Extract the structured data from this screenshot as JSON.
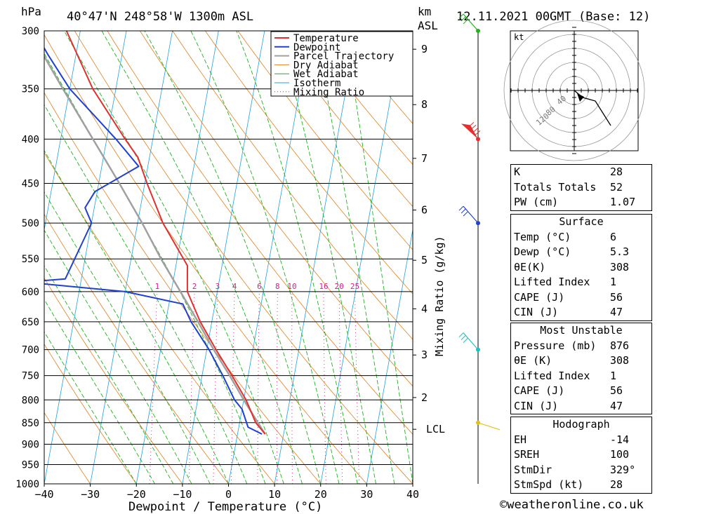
{
  "header": {
    "location": "40°47'N 248°58'W 1300m ASL",
    "datetime": "12.11.2021 00GMT (Base: 12)",
    "hpa_label": "hPa",
    "km_label": "km",
    "asl_label": "ASL"
  },
  "chart_data": {
    "type": "skew-t",
    "xlabel": "Dewpoint / Temperature (°C)",
    "ylabel_right": "Mixing Ratio (g/kg)",
    "x_ticks": [
      -40,
      -30,
      -20,
      -10,
      0,
      10,
      20,
      30,
      40
    ],
    "p_ticks": [
      300,
      350,
      400,
      450,
      500,
      550,
      600,
      650,
      700,
      750,
      800,
      850,
      900,
      950,
      1000
    ],
    "km_ticks": [
      {
        "km": 1,
        "label": "LCL",
        "p": 865
      },
      {
        "km": 2,
        "label": "2",
        "p": 795
      },
      {
        "km": 3,
        "label": "3",
        "p": 710
      },
      {
        "km": 4,
        "label": "4",
        "p": 628
      },
      {
        "km": 5,
        "label": "5",
        "p": 552
      },
      {
        "km": 6,
        "label": "6",
        "p": 483
      },
      {
        "km": 7,
        "label": "7",
        "p": 421
      },
      {
        "km": 8,
        "label": "8",
        "p": 365
      },
      {
        "km": 9,
        "label": "9",
        "p": 315
      }
    ],
    "mixing_ratio_labels": [
      "1",
      "2",
      "3",
      "4",
      "6",
      "8",
      "10",
      "16",
      "20",
      "25"
    ],
    "mixing_ratio_values": [
      1,
      2,
      3,
      4,
      6,
      8,
      10,
      16,
      20,
      25
    ],
    "legend": [
      "Temperature",
      "Dewpoint",
      "Parcel Trajectory",
      "Dry Adiabat",
      "Wet Adiabat",
      "Isotherm",
      "Mixing Ratio"
    ],
    "legend_position": "top-right",
    "colors": {
      "temperature": "#e03030",
      "dewpoint": "#2040d0",
      "parcel": "#a0a0a0",
      "dry_adiabat": "#e08020",
      "wet_adiabat": "#20b020",
      "isotherm": "#20a0e0",
      "mixing_ratio": "#d02090"
    },
    "temperature": [
      {
        "p": 876,
        "t": 6.0
      },
      {
        "p": 850,
        "t": 3.5
      },
      {
        "p": 800,
        "t": 0.5
      },
      {
        "p": 750,
        "t": -3.5
      },
      {
        "p": 700,
        "t": -8.0
      },
      {
        "p": 650,
        "t": -12.5
      },
      {
        "p": 600,
        "t": -16.5
      },
      {
        "p": 580,
        "t": -17.0
      },
      {
        "p": 560,
        "t": -17.5
      },
      {
        "p": 500,
        "t": -24.5
      },
      {
        "p": 450,
        "t": -29.5
      },
      {
        "p": 420,
        "t": -32.5
      },
      {
        "p": 400,
        "t": -36.0
      },
      {
        "p": 350,
        "t": -45.0
      },
      {
        "p": 300,
        "t": -53.0
      }
    ],
    "dewpoint": [
      {
        "p": 876,
        "t": 5.3
      },
      {
        "p": 860,
        "t": 2.0
      },
      {
        "p": 820,
        "t": 0.0
      },
      {
        "p": 800,
        "t": -2.0
      },
      {
        "p": 750,
        "t": -5.5
      },
      {
        "p": 700,
        "t": -9.5
      },
      {
        "p": 650,
        "t": -14.5
      },
      {
        "p": 620,
        "t": -17.0
      },
      {
        "p": 600,
        "t": -30.0
      },
      {
        "p": 585,
        "t": -52.0
      },
      {
        "p": 580,
        "t": -43.5
      },
      {
        "p": 500,
        "t": -40.0
      },
      {
        "p": 480,
        "t": -42.0
      },
      {
        "p": 460,
        "t": -40.5
      },
      {
        "p": 430,
        "t": -32.0
      },
      {
        "p": 400,
        "t": -38.0
      },
      {
        "p": 350,
        "t": -50.0
      },
      {
        "p": 320,
        "t": -56.0
      },
      {
        "p": 300,
        "t": -60.0
      }
    ],
    "parcel": [
      {
        "p": 876,
        "t": 6.0
      },
      {
        "p": 850,
        "t": 4.0
      },
      {
        "p": 800,
        "t": 0.0
      },
      {
        "p": 750,
        "t": -4.0
      },
      {
        "p": 700,
        "t": -8.5
      },
      {
        "p": 650,
        "t": -13.0
      },
      {
        "p": 600,
        "t": -18.0
      },
      {
        "p": 550,
        "t": -23.5
      },
      {
        "p": 500,
        "t": -29.0
      },
      {
        "p": 450,
        "t": -35.5
      },
      {
        "p": 400,
        "t": -43.0
      },
      {
        "p": 350,
        "t": -51.5
      },
      {
        "p": 310,
        "t": -59.0
      }
    ],
    "wind_barbs": [
      {
        "p": 300,
        "color": "#20b020"
      },
      {
        "p": 400,
        "color": "#e03030"
      },
      {
        "p": 500,
        "color": "#2040d0"
      },
      {
        "p": 700,
        "color": "#20c0c0"
      },
      {
        "p": 850,
        "color": "#e0c020"
      }
    ]
  },
  "hodograph": {
    "unit": "kt",
    "ring_labels": [
      "40",
      "80",
      "120"
    ]
  },
  "indices": {
    "rows": [
      {
        "label": "K",
        "value": "28"
      },
      {
        "label": "Totals Totals",
        "value": "52"
      },
      {
        "label": "PW (cm)",
        "value": "1.07"
      }
    ]
  },
  "surface": {
    "title": "Surface",
    "rows": [
      {
        "label": "Temp (°C)",
        "value": "6"
      },
      {
        "label": "Dewp (°C)",
        "value": "5.3"
      },
      {
        "label": "θE(K)",
        "value": "308"
      },
      {
        "label": "Lifted Index",
        "value": "1"
      },
      {
        "label": "CAPE (J)",
        "value": "56"
      },
      {
        "label": "CIN (J)",
        "value": "47"
      }
    ]
  },
  "most_unstable": {
    "title": "Most Unstable",
    "rows": [
      {
        "label": "Pressure (mb)",
        "value": "876"
      },
      {
        "label": "θE (K)",
        "value": "308"
      },
      {
        "label": "Lifted Index",
        "value": "1"
      },
      {
        "label": "CAPE (J)",
        "value": "56"
      },
      {
        "label": "CIN (J)",
        "value": "47"
      }
    ]
  },
  "hodograph_table": {
    "title": "Hodograph",
    "rows": [
      {
        "label": "EH",
        "value": "-14"
      },
      {
        "label": "SREH",
        "value": "100"
      },
      {
        "label": "StmDir",
        "value": "329°"
      },
      {
        "label": "StmSpd (kt)",
        "value": "28"
      }
    ]
  },
  "footer": "©weatheronline.co.uk"
}
